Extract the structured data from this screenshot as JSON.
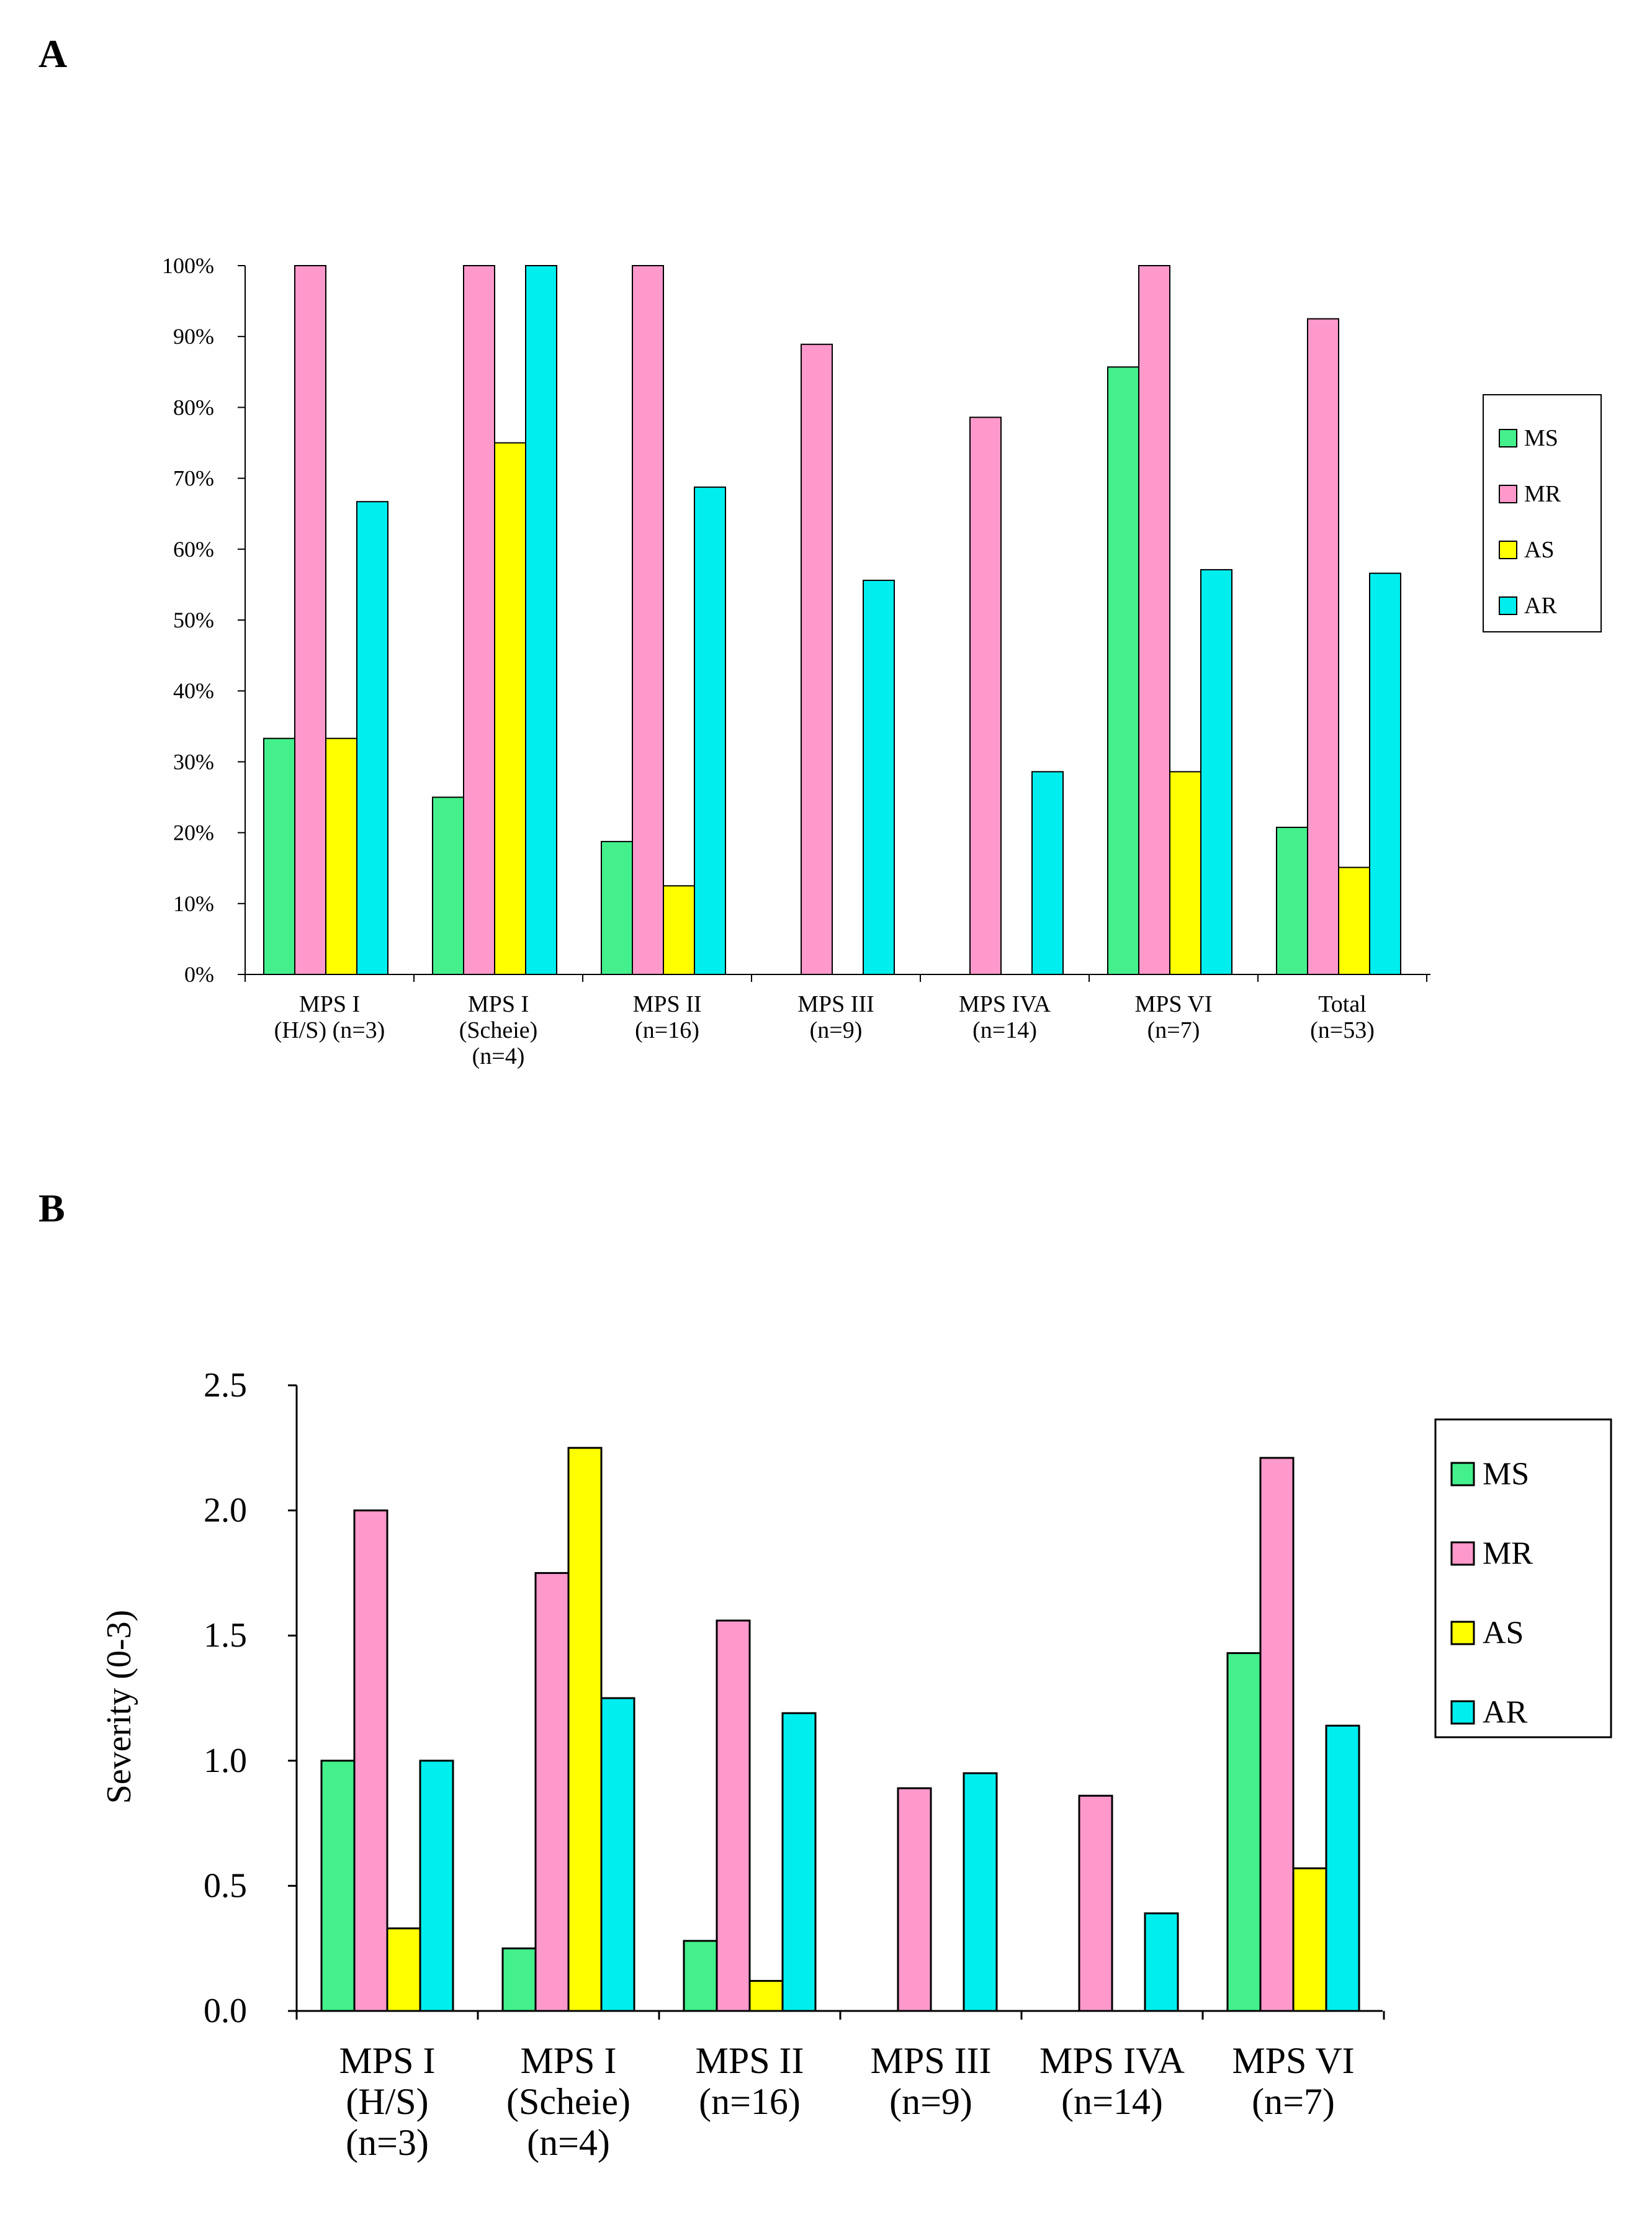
{
  "panels": {
    "a_label": "A",
    "b_label": "B"
  },
  "chart_data": [
    {
      "type": "bar",
      "panel": "A",
      "title": "",
      "xlabel": "",
      "ylabel": "",
      "ylim": [
        0,
        100
      ],
      "y_ticks": [
        "0%",
        "10%",
        "20%",
        "30%",
        "40%",
        "50%",
        "60%",
        "70%",
        "80%",
        "90%",
        "100%"
      ],
      "categories": [
        [
          "MPS I",
          "(H/S) (n=3)"
        ],
        [
          "MPS I",
          "(Scheie)",
          "(n=4)"
        ],
        [
          "MPS II",
          "(n=16)"
        ],
        [
          "MPS III",
          "(n=9)"
        ],
        [
          "MPS IVA",
          "(n=14)"
        ],
        [
          "MPS VI",
          "(n=7)"
        ],
        [
          "Total",
          "(n=53)"
        ]
      ],
      "series": [
        {
          "name": "MS",
          "color": "#44f08c",
          "values": [
            33.3,
            25,
            18.75,
            0,
            0,
            85.7,
            20.75
          ]
        },
        {
          "name": "MR",
          "color": "#ff99cc",
          "values": [
            100,
            100,
            100,
            88.9,
            78.6,
            100,
            92.5
          ]
        },
        {
          "name": "AS",
          "color": "#ffff00",
          "values": [
            33.3,
            75,
            12.5,
            0,
            0,
            28.6,
            15.1
          ]
        },
        {
          "name": "AR",
          "color": "#00eeee",
          "values": [
            66.7,
            100,
            68.75,
            55.6,
            28.6,
            57.1,
            56.6
          ]
        }
      ],
      "legend": "right"
    },
    {
      "type": "bar",
      "panel": "B",
      "title": "",
      "xlabel": "",
      "ylabel": "Severity (0-3)",
      "ylim": [
        0,
        2.5
      ],
      "y_ticks": [
        "0.0",
        "0.5",
        "1.0",
        "1.5",
        "2.0",
        "2.5"
      ],
      "categories": [
        [
          "MPS I",
          "(H/S)",
          "(n=3)"
        ],
        [
          "MPS I",
          "(Scheie)",
          "(n=4)"
        ],
        [
          "MPS II",
          "(n=16)"
        ],
        [
          "MPS III",
          "(n=9)"
        ],
        [
          "MPS IVA",
          "(n=14)"
        ],
        [
          "MPS VI",
          "(n=7)"
        ]
      ],
      "series": [
        {
          "name": "MS",
          "color": "#44f08c",
          "values": [
            1.0,
            0.25,
            0.28,
            0,
            0,
            1.43
          ]
        },
        {
          "name": "MR",
          "color": "#ff99cc",
          "values": [
            2.0,
            1.75,
            1.56,
            0.89,
            0.86,
            2.21
          ]
        },
        {
          "name": "AS",
          "color": "#ffff00",
          "values": [
            0.33,
            2.25,
            0.12,
            0,
            0,
            0.57
          ]
        },
        {
          "name": "AR",
          "color": "#00eeee",
          "values": [
            1.0,
            1.25,
            1.19,
            0.95,
            0.39,
            1.14
          ]
        }
      ],
      "legend": "right"
    }
  ]
}
